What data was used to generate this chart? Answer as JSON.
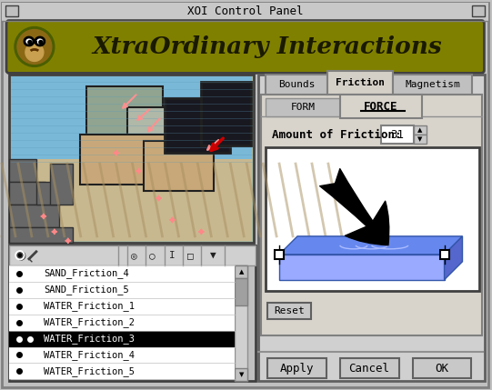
{
  "title": "XOI Control Panel",
  "header_text": "XtraOrdinary Interactions",
  "bg_color": "#c0c0c0",
  "header_bg": "#808000",
  "header_text_color": "#1a1a00",
  "tabs_top": [
    "Bounds",
    "Friction",
    "Magnetism"
  ],
  "active_tab_top": "Friction",
  "tabs_sub": [
    "FORM",
    "FORCE"
  ],
  "active_tab_sub": "FORCE",
  "friction_label": "Amount of Friction:",
  "friction_value": "31",
  "list_items": [
    "SAND_Friction_4",
    "SAND_Friction_5",
    "WATER_Friction_1",
    "WATER_Friction_2",
    "WATER_Friction_3",
    "WATER_Friction_4",
    "WATER_Friction_5"
  ],
  "selected_item": "WATER_Friction_3",
  "selected_item_idx": 4,
  "button_labels": [
    "Apply",
    "Cancel",
    "OK"
  ],
  "reset_label": "Reset",
  "window_bg": "#c0c0c0",
  "list_bg": "#ffffff",
  "selected_bg": "#000000",
  "selected_fg": "#ffffff",
  "panel_bg": "#d4d0c8",
  "inner_panel_bg": "#ffffff"
}
